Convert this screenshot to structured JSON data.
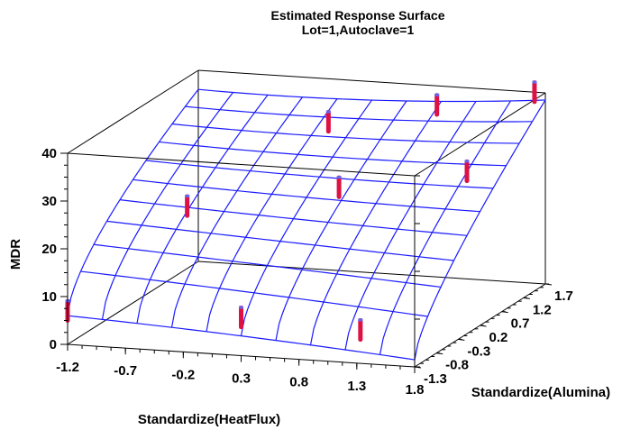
{
  "chart_data": {
    "type": "surface",
    "title": "Estimated Response Surface",
    "subtitle": "Lot=1,Autoclave=1",
    "xlabel": "Standardize(HeatFlux)",
    "ylabel": "Standardize(Alumina)",
    "zlabel": "MDR",
    "x_ticks": [
      "-1.2",
      "-0.7",
      "-0.2",
      "0.3",
      "0.8",
      "1.3",
      "1.8"
    ],
    "y_ticks": [
      "-1.3",
      "-0.8",
      "-0.3",
      "0.2",
      "0.7",
      "1.2",
      "1.7"
    ],
    "z_ticks": [
      "0",
      "10",
      "20",
      "30",
      "40"
    ],
    "xlim": [
      -1.4,
      1.8
    ],
    "ylim": [
      -1.3,
      1.7
    ],
    "zlim": [
      0,
      40
    ],
    "grid_x": 11,
    "grid_y": 11,
    "surface_color": "#1a1aff",
    "point_color": "#dd1144",
    "points": [
      {
        "x": -1.4,
        "y": -1.3,
        "z": 7
      },
      {
        "x": -0.9,
        "y": 0.2,
        "z": 21
      },
      {
        "x": -0.2,
        "y": 1.7,
        "z": 31
      },
      {
        "x": 0.2,
        "y": -1.3,
        "z": 8
      },
      {
        "x": 0.5,
        "y": 0.2,
        "z": 27
      },
      {
        "x": 0.8,
        "y": 1.7,
        "z": 36
      },
      {
        "x": 1.3,
        "y": -1.3,
        "z": 7
      },
      {
        "x": 1.8,
        "y": -0.1,
        "z": 34
      },
      {
        "x": 1.7,
        "y": 1.7,
        "z": 40
      }
    ]
  }
}
